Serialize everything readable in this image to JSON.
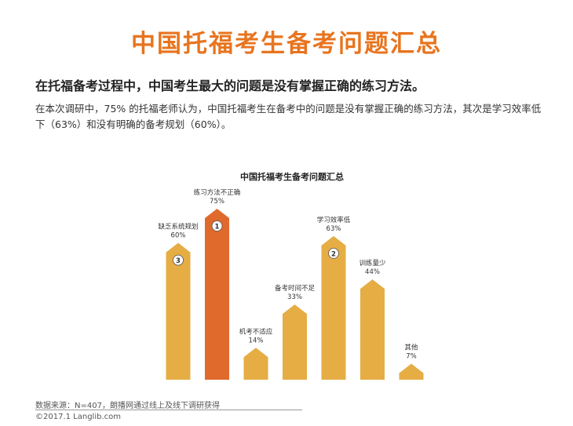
{
  "header": {
    "title": "中国托福考生备考问题汇总",
    "subtitle": "在托福备考过程中，中国考生最大的问题是没有掌握正确的练习方法。",
    "description": "在本次调研中，75% 的托福老师认为，中国托福考生在备考中的问题是没有掌握正确的练习方法，其次是学习效率低下（63%）和没有明确的备考规划（60%）。"
  },
  "chart_data": {
    "type": "bar",
    "title": "中国托福考生备考问题汇总",
    "categories": [
      "缺乏系统规划",
      "练习方法不正确",
      "机考不适应",
      "备考时间不足",
      "学习效率低",
      "训练量少",
      "其他"
    ],
    "values": [
      60,
      75,
      14,
      33,
      63,
      44,
      7
    ],
    "value_labels": [
      "60%",
      "75%",
      "14%",
      "33%",
      "63%",
      "44%",
      "7%"
    ],
    "ranks": [
      "3",
      "1",
      "",
      "",
      "2",
      "",
      ""
    ],
    "ylim": [
      0,
      80
    ],
    "xlabel": "",
    "ylabel": "",
    "colors": {
      "default": "#e5ad44",
      "highlight": "#df6a2c",
      "highlight_index": 1
    }
  },
  "footer": {
    "source": "数据来源：N=407，朗播网通过线上及线下调研获得",
    "copyright": "©2017.1 Langlib.com"
  }
}
